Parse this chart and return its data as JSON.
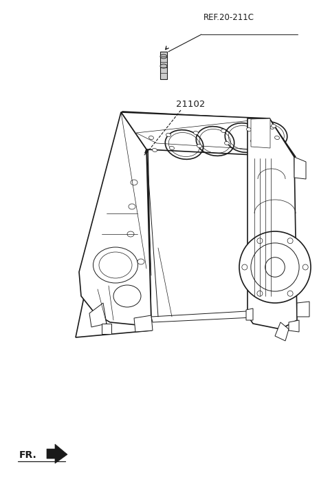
{
  "bg_color": "#ffffff",
  "line_color": "#1a1a1a",
  "fig_width": 4.8,
  "fig_height": 7.16,
  "dpi": 100,
  "ref_label": "REF.20-211C",
  "part_label": "21102",
  "fr_label": "FR."
}
